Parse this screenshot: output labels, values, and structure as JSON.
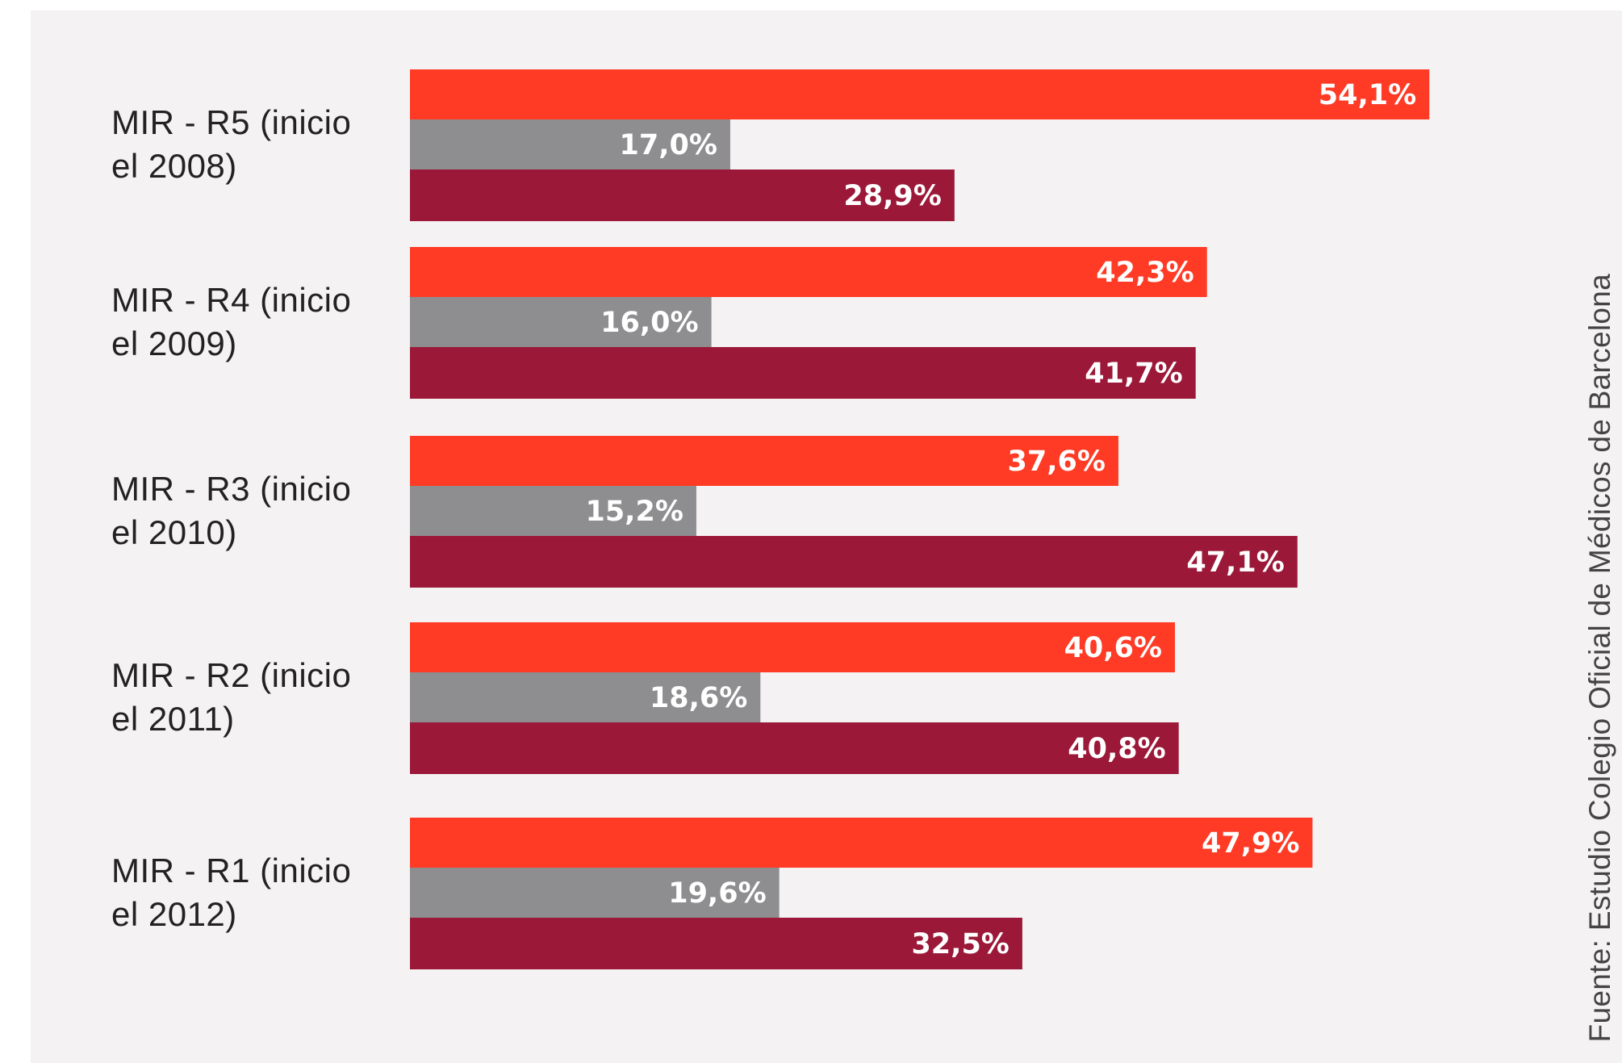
{
  "chart_data": {
    "type": "bar",
    "orientation": "horizontal",
    "categories": [
      [
        "MIR - R5 (inicio",
        "el 2008)"
      ],
      [
        "MIR - R4 (inicio",
        "el 2009)"
      ],
      [
        "MIR - R3 (inicio",
        "el 2010)"
      ],
      [
        "MIR - R2 (inicio",
        "el 2011)"
      ],
      [
        "MIR - R1 (inicio",
        "el 2012)"
      ]
    ],
    "series": [
      {
        "color": "#ff3b26",
        "values": [
          54.1,
          42.3,
          37.6,
          40.6,
          47.9
        ],
        "labels": [
          "54,1%",
          "42,3%",
          "37,6%",
          "40,6%",
          "47,9%"
        ]
      },
      {
        "color": "#8e8e90",
        "values": [
          17.0,
          16.0,
          15.2,
          18.6,
          19.6
        ],
        "labels": [
          "17,0%",
          "16,0%",
          "15,2%",
          "18,6%",
          "19,6%"
        ]
      },
      {
        "color": "#9b1838",
        "values": [
          28.9,
          41.7,
          47.1,
          40.8,
          32.5
        ],
        "labels": [
          "28,9%",
          "41,7%",
          "47,1%",
          "40,8%",
          "32,5%"
        ]
      }
    ],
    "xlim": [
      0,
      100
    ],
    "unit": "%",
    "grid": false,
    "legend": "none"
  },
  "source": "Fuente: Estudio Colegio Oficial de Médicos de Barcelona"
}
